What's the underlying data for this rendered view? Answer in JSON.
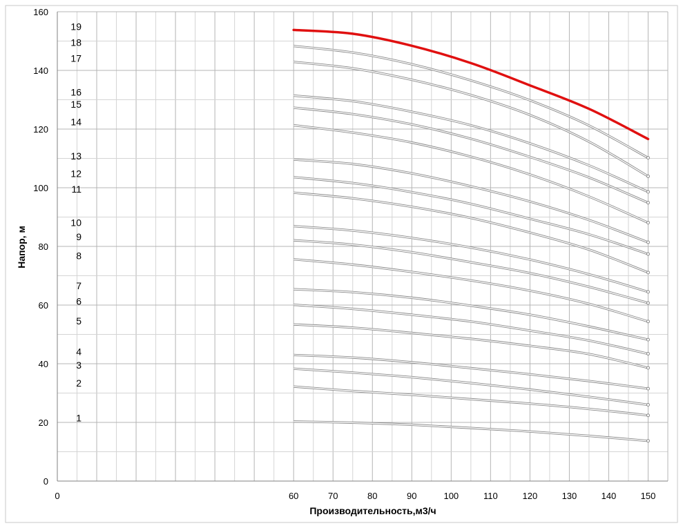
{
  "chart_data": {
    "type": "line",
    "xlabel": "Производительность,м3/ч",
    "ylabel": "Напор, м",
    "xlim": [
      0,
      155
    ],
    "ylim": [
      0,
      160
    ],
    "x_ticks": [
      "0",
      "60",
      "70",
      "80",
      "90",
      "100",
      "110",
      "120",
      "130",
      "140",
      "150"
    ],
    "x_tick_values": [
      0,
      60,
      70,
      80,
      90,
      100,
      110,
      120,
      130,
      140,
      150
    ],
    "y_ticks": [
      "0",
      "20",
      "40",
      "60",
      "80",
      "100",
      "120",
      "140",
      "160"
    ],
    "y_tick_values": [
      0,
      20,
      40,
      60,
      80,
      100,
      120,
      140,
      160
    ],
    "grid": true,
    "x": [
      60,
      75,
      90,
      105,
      120,
      135,
      150
    ],
    "highlight_color": "#e01010",
    "series_color": "#909090",
    "series": [
      {
        "label": "1",
        "values": [
          20.3,
          19.9,
          19.2,
          18.1,
          16.9,
          15.4,
          13.7
        ]
      },
      {
        "label": "2",
        "values": [
          32.2,
          30.7,
          29.4,
          27.9,
          26.4,
          24.6,
          22.4
        ]
      },
      {
        "label": "3",
        "values": [
          38.3,
          37.0,
          35.4,
          33.4,
          31.2,
          28.7,
          26.0
        ]
      },
      {
        "label": "4",
        "values": [
          43.0,
          42.1,
          40.5,
          38.5,
          36.4,
          34.1,
          31.5
        ]
      },
      {
        "label": "5",
        "values": [
          53.4,
          52.3,
          50.5,
          48.5,
          46.1,
          43.3,
          38.6
        ]
      },
      {
        "label": "6",
        "values": [
          60.1,
          58.7,
          56.7,
          54.4,
          51.3,
          47.9,
          43.4
        ]
      },
      {
        "label": "7",
        "values": [
          65.4,
          64.4,
          62.5,
          59.8,
          56.7,
          52.7,
          48.2
        ]
      },
      {
        "label": "8",
        "values": [
          75.6,
          73.8,
          71.3,
          68.4,
          64.9,
          60.4,
          54.4
        ]
      },
      {
        "label": "9",
        "values": [
          82.1,
          80.6,
          78.0,
          74.6,
          70.9,
          66.2,
          60.7
        ]
      },
      {
        "label": "10",
        "values": [
          86.9,
          85.4,
          82.9,
          79.6,
          75.5,
          70.5,
          64.5
        ]
      },
      {
        "label": "11",
        "values": [
          98.3,
          96.4,
          93.5,
          89.7,
          84.7,
          78.9,
          71.1
        ]
      },
      {
        "label": "12",
        "values": [
          103.6,
          101.6,
          98.5,
          94.5,
          89.4,
          84.1,
          77.4
        ]
      },
      {
        "label": "13",
        "values": [
          109.6,
          108.1,
          104.9,
          100.5,
          95.3,
          89.0,
          81.4
        ]
      },
      {
        "label": "14",
        "values": [
          121.3,
          118.8,
          115.4,
          110.6,
          104.5,
          97.0,
          88.1
        ]
      },
      {
        "label": "15",
        "values": [
          127.3,
          125.1,
          121.6,
          116.7,
          110.5,
          103.5,
          94.9
        ]
      },
      {
        "label": "16",
        "values": [
          131.4,
          129.5,
          125.9,
          121.3,
          115.1,
          107.6,
          98.6
        ]
      },
      {
        "label": "17",
        "values": [
          142.9,
          140.7,
          136.8,
          131.6,
          124.8,
          115.7,
          103.9
        ]
      },
      {
        "label": "18",
        "values": [
          148.3,
          146.1,
          142.1,
          136.6,
          129.8,
          121.2,
          110.2
        ]
      },
      {
        "label": "19",
        "values": [
          153.8,
          152.5,
          148.4,
          142.5,
          134.9,
          126.9,
          116.6
        ],
        "highlight": true
      }
    ]
  }
}
